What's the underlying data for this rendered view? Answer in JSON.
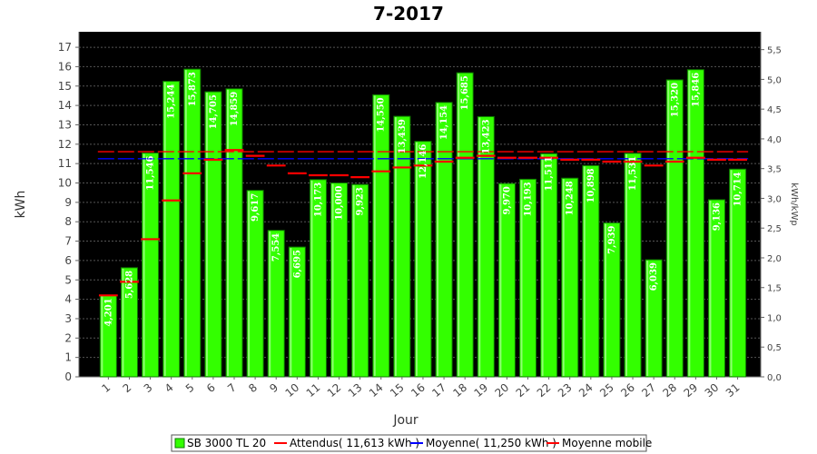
{
  "chart_data": {
    "type": "bar",
    "title": "7-2017",
    "xlabel": "Jour",
    "ylabel": "kWh",
    "y2label": "kWh/kWp",
    "ylim": [
      0,
      17.8
    ],
    "y2lim": [
      0,
      5.8
    ],
    "y_ticks": [
      "0",
      "1",
      "2",
      "3",
      "4",
      "5",
      "6",
      "7",
      "8",
      "9",
      "10",
      "11",
      "12",
      "13",
      "14",
      "15",
      "16",
      "17"
    ],
    "y2_ticks": [
      "0,0",
      "0,5",
      "1,0",
      "1,5",
      "2,0",
      "2,5",
      "3,0",
      "3,5",
      "4,0",
      "4,5",
      "5,0",
      "5,5"
    ],
    "grid": true,
    "legend_position": "bottom",
    "categories": [
      "1",
      "2",
      "3",
      "4",
      "5",
      "6",
      "7",
      "8",
      "9",
      "10",
      "11",
      "12",
      "13",
      "14",
      "15",
      "16",
      "17",
      "18",
      "19",
      "20",
      "21",
      "22",
      "23",
      "24",
      "25",
      "26",
      "27",
      "28",
      "29",
      "30",
      "31"
    ],
    "series": [
      {
        "name": "SB 3000 TL 20",
        "values": [
          4.201,
          5.628,
          11.546,
          15.244,
          15.873,
          14.705,
          14.859,
          9.617,
          7.554,
          6.695,
          10.173,
          10.0,
          9.923,
          14.55,
          13.439,
          12.146,
          14.154,
          15.685,
          13.423,
          9.97,
          10.193,
          11.511,
          10.248,
          10.898,
          7.939,
          11.531,
          6.039,
          15.32,
          15.846,
          9.136,
          10.714
        ],
        "labels": [
          "4,201",
          "5,628",
          "11,546",
          "15,244",
          "15,873",
          "14,705",
          "14,859",
          "9,617",
          "7,554",
          "6,695",
          "10,173",
          "10,000",
          "9,923",
          "14,550",
          "13,439",
          "12,146",
          "14,154",
          "15,685",
          "13,423",
          "9,970",
          "10,193",
          "11,511",
          "10,248",
          "10,898",
          "7,939",
          "11,531",
          "6,039",
          "15,320",
          "15,846",
          "9,136",
          "10,714"
        ]
      },
      {
        "name": "Moyenne mobile",
        "values": [
          4.2,
          4.9,
          7.1,
          9.1,
          10.5,
          11.2,
          11.7,
          11.4,
          10.9,
          10.5,
          10.4,
          10.4,
          10.3,
          10.6,
          10.8,
          10.9,
          11.1,
          11.3,
          11.4,
          11.3,
          11.3,
          11.3,
          11.2,
          11.2,
          11.1,
          11.1,
          10.9,
          11.1,
          11.3,
          11.2,
          11.2
        ]
      }
    ],
    "reference_lines": [
      {
        "name": "Attendus( 11,613 kWh )",
        "value": 11.613,
        "color": "#ff0000"
      },
      {
        "name": "Moyenne( 11,250 kWh )",
        "value": 11.25,
        "color": "#0000ff"
      }
    ],
    "colors": {
      "bar": "#33ff00",
      "bar_edge": "#0f7a00",
      "plot_bg": "#000000",
      "grid": "#555555",
      "moving_avg": "#ff0000"
    }
  }
}
